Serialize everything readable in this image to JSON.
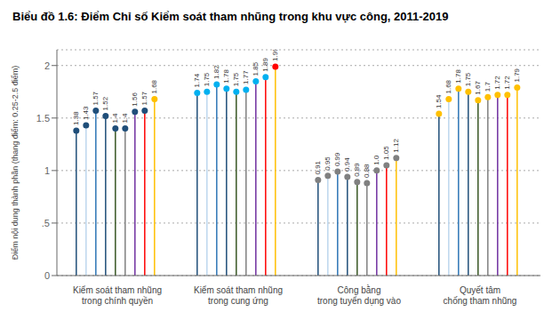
{
  "chart_data": {
    "type": "lollipop",
    "title": "Biểu đồ 1.6: Điểm Chỉ số Kiểm soát tham nhũng trong khu vực công, 2011-2019",
    "ylabel": "Điểm nội dung thành phần (thang điểm: 0.25-2.5 điểm)",
    "categories": [
      "Kiểm soát tham nhũng\ntrong chính quyền\n ",
      "Kiểm soát tham nhũng\ntrong cung ứng\n ",
      "Công bằng\ntrong tuyển dụng vào\n ",
      "Quyết tâm\nchống tham nhũng\n "
    ],
    "ylim": [
      0,
      2.15
    ],
    "yticks": [
      0,
      {
        "value": 0.5,
        "label": ".5"
      },
      1,
      1.5,
      2
    ],
    "grid": true,
    "data_labels": true,
    "series": [
      {
        "color": "#1F4E79",
        "colors": [
          "#1F4E79",
          "#00B0F0",
          "#808080",
          "#FFC000"
        ],
        "values": [
          1.38,
          1.74,
          0.91,
          1.54
        ],
        "value_labels": [
          "1.38",
          "1.74",
          "0.91",
          "1.54"
        ]
      },
      {
        "color": "#BDD7EE",
        "colors": [
          "#1F4E79",
          "#00B0F0",
          "#808080",
          "#FFC000"
        ],
        "values": [
          1.43,
          1.75,
          0.95,
          1.68
        ],
        "value_labels": [
          "1.43",
          "1.75",
          "0.95",
          "1.68"
        ]
      },
      {
        "color": "#2E75B6",
        "colors": [
          "#1F4E79",
          "#00B0F0",
          "#808080",
          "#FFC000"
        ],
        "values": [
          1.57,
          1.82,
          0.99,
          1.78
        ],
        "value_labels": [
          "1.57",
          "1.82",
          "0.99",
          "1.78"
        ]
      },
      {
        "color": "#1F4E79",
        "colors": [
          "#1F4E79",
          "#00B0F0",
          "#808080",
          "#FFC000"
        ],
        "values": [
          1.52,
          1.78,
          0.94,
          1.75
        ],
        "value_labels": [
          "1.52",
          "1.78",
          "0.94",
          "1.75"
        ]
      },
      {
        "color": "#375623",
        "colors": [
          "#1F4E79",
          "#00B0F0",
          "#808080",
          "#FFC000"
        ],
        "values": [
          1.4,
          1.75,
          0.89,
          1.67
        ],
        "value_labels": [
          "1.4",
          "1.75",
          "0.89",
          "1.67"
        ]
      },
      {
        "color": "#808080",
        "colors": [
          "#1F4E79",
          "#00B0F0",
          "#808080",
          "#FFC000"
        ],
        "values": [
          1.4,
          1.77,
          0.88,
          1.7
        ],
        "value_labels": [
          "1.4",
          "1.77",
          "0.88",
          "1.7"
        ]
      },
      {
        "color": "#7030A0",
        "colors": [
          "#1F4E79",
          "#00B0F0",
          "#808080",
          "#FFC000"
        ],
        "values": [
          1.56,
          1.85,
          1.0,
          1.72
        ],
        "value_labels": [
          "1.56",
          "1.85",
          "1.0",
          "1.72"
        ]
      },
      {
        "color": "#FF0000",
        "colors": [
          "#1F4E79",
          "#00B0F0",
          "#808080",
          "#FFC000"
        ],
        "values": [
          1.57,
          1.89,
          1.05,
          1.72
        ],
        "value_labels": [
          "1.57",
          "1.89",
          "1.05",
          "1.72"
        ]
      },
      {
        "color": "#FFC000",
        "colors": [
          "#FFC000",
          "#FF0000",
          "#808080",
          "#FFC000"
        ],
        "values": [
          1.68,
          1.99,
          1.12,
          1.79
        ],
        "value_labels": [
          "1.68",
          "1.99",
          "1.12",
          "1.79"
        ]
      }
    ]
  }
}
